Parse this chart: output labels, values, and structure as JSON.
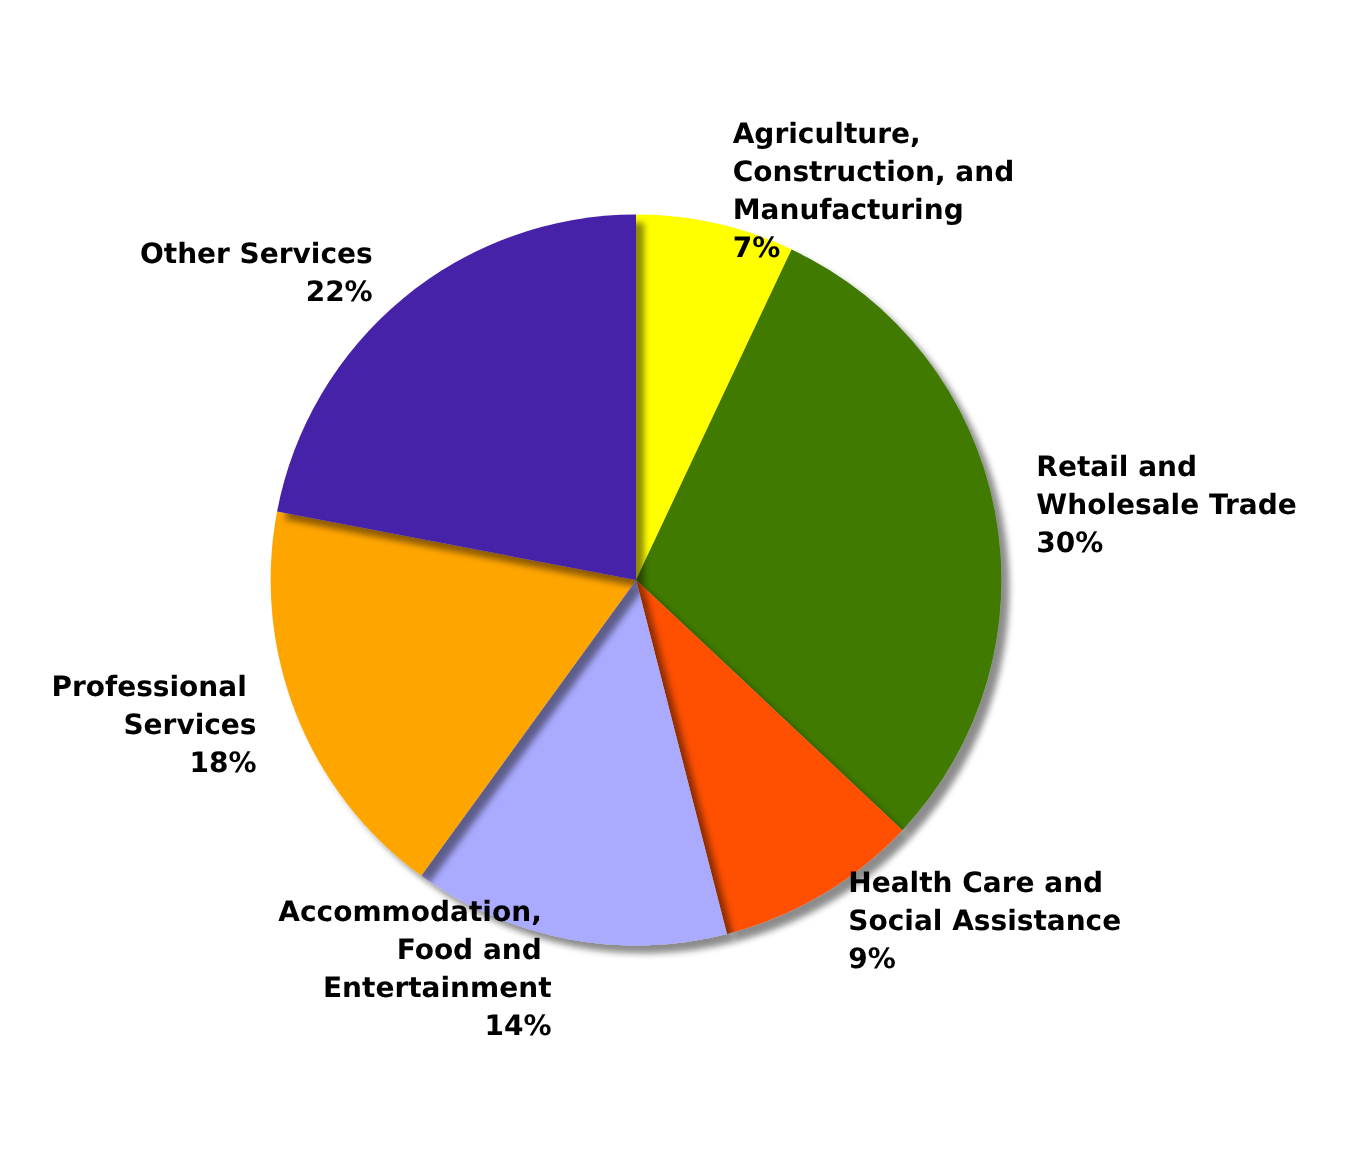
{
  "chart_data": {
    "type": "pie",
    "categories": [
      "Agriculture, Construction, and Manufacturing",
      "Retail and Wholesale Trade",
      "Health Care and Social Assistance",
      "Accommodation, Food and Entertainment",
      "Professional Services",
      "Other Services"
    ],
    "values": [
      7,
      30,
      9,
      14,
      18,
      22
    ],
    "value_labels": [
      "7%",
      "30%",
      "9%",
      "14%",
      "18%",
      "22%"
    ],
    "colors": [
      "#ffff00",
      "#3f7a00",
      "#ff4f00",
      "#aaaaff",
      "#ffa500",
      "#4520a8"
    ],
    "legend": false
  }
}
